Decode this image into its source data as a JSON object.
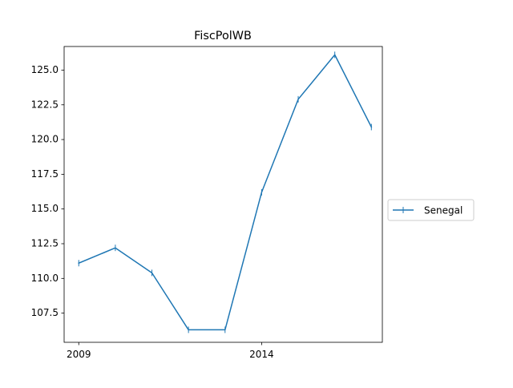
{
  "chart_data": {
    "type": "line",
    "title": "FiscPolWB",
    "xlabel": "",
    "ylabel": "",
    "x": [
      2009,
      2010,
      2011,
      2012,
      2013,
      2014,
      2015,
      2016,
      2017
    ],
    "xlim": [
      2008.6,
      2017.3
    ],
    "ylim": [
      105.4,
      126.7
    ],
    "x_ticks": [
      2009,
      2014
    ],
    "y_ticks": [
      107.5,
      110.0,
      112.5,
      115.0,
      117.5,
      120.0,
      122.5,
      125.0
    ],
    "y_tick_labels": [
      "107.5",
      "110.0",
      "112.5",
      "115.0",
      "117.5",
      "120.0",
      "122.5",
      "125.0"
    ],
    "grid": false,
    "legend_position": "outside-right",
    "series": [
      {
        "name": "Senegal",
        "color": "#1f77b4",
        "marker": "vertical-tick",
        "values": [
          111.1,
          112.2,
          110.4,
          106.3,
          106.3,
          116.2,
          122.9,
          126.1,
          120.9
        ]
      }
    ]
  }
}
